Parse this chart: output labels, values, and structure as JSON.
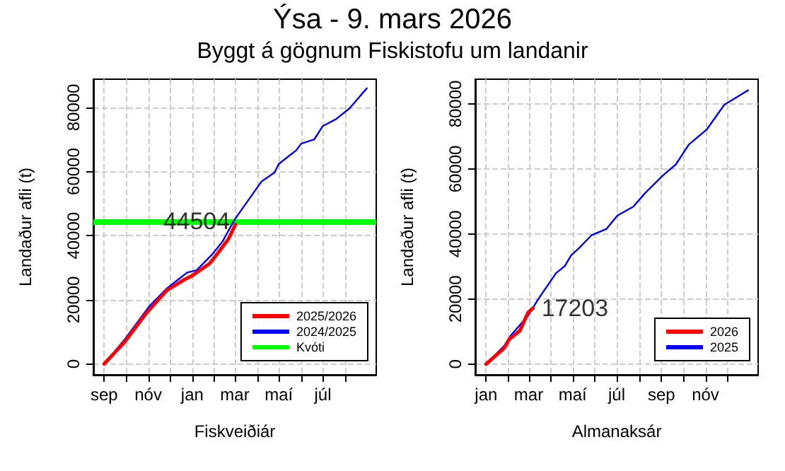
{
  "chart_data": [
    {
      "type": "line",
      "title": "Ýsa -  9. mars 2026",
      "subtitle": "Byggt á gögnum Fiskistofu um landanir",
      "xlabel": "Fiskveiðiár",
      "ylabel": "Landaður afli (t)",
      "xlim": [
        "2025-08-17",
        "2026-09-13"
      ],
      "ylim": [
        -3400,
        88800
      ],
      "xticks": [
        {
          "value": "2025-09-01",
          "label": "sep"
        },
        {
          "value": "2025-10-01",
          "label": null
        },
        {
          "value": "2025-11-01",
          "label": "nóv"
        },
        {
          "value": "2025-12-01",
          "label": null
        },
        {
          "value": "2026-01-01",
          "label": "jan"
        },
        {
          "value": "2026-02-01",
          "label": null
        },
        {
          "value": "2026-03-01",
          "label": "mar"
        },
        {
          "value": "2026-04-01",
          "label": null
        },
        {
          "value": "2026-05-01",
          "label": "maí"
        },
        {
          "value": "2026-06-01",
          "label": null
        },
        {
          "value": "2026-07-01",
          "label": "júl"
        },
        {
          "value": "2026-08-01",
          "label": null
        }
      ],
      "yticks": [
        0,
        20000,
        40000,
        60000,
        80000
      ],
      "series": [
        {
          "name": "2025/2026",
          "color": "#ff0000",
          "x": [
            "2025-09-01",
            "2025-09-30",
            "2025-10-30",
            "2025-11-27",
            "2025-12-22",
            "2025-12-31",
            "2026-01-25",
            "2026-02-06",
            "2026-02-20",
            "2026-03-02"
          ],
          "values": [
            0,
            7000,
            16000,
            23000,
            26400,
            27400,
            31300,
            34700,
            38900,
            43500
          ]
        },
        {
          "name": "2024/2025",
          "color": "#0000ff",
          "x": [
            "2025-09-01",
            "2025-09-30",
            "2025-11-03",
            "2025-11-27",
            "2025-12-25",
            "2026-01-07",
            "2026-01-28",
            "2026-02-12",
            "2026-03-01",
            "2026-04-07",
            "2026-04-25",
            "2026-05-01",
            "2026-05-25",
            "2026-06-01",
            "2026-06-19",
            "2026-07-01",
            "2026-07-19",
            "2026-08-07",
            "2026-08-31"
          ],
          "values": [
            0,
            7800,
            18100,
            23600,
            28500,
            29200,
            34000,
            38200,
            45100,
            56900,
            59700,
            62400,
            66600,
            68700,
            70000,
            74200,
            76300,
            79700,
            86000
          ]
        }
      ],
      "ref_lines": [
        {
          "axis": "y",
          "value": 44504,
          "label": "Kvóti",
          "color": "#00ff00"
        }
      ],
      "annotations": [
        {
          "text": "44504",
          "x": "2026-01-07",
          "y": 44504
        }
      ],
      "grid": true,
      "legend": "bottom right",
      "line_style": "solid",
      "marker": "none"
    },
    {
      "type": "line",
      "xlabel": "Almanaksár",
      "ylabel": "Landaður afli (t)",
      "xlim": [
        "2025-12-17",
        "2027-01-13"
      ],
      "ylim": [
        -3300,
        87600
      ],
      "xticks": [
        {
          "value": "2026-01-01",
          "label": "jan"
        },
        {
          "value": "2026-02-01",
          "label": null
        },
        {
          "value": "2026-03-01",
          "label": "mar"
        },
        {
          "value": "2026-04-01",
          "label": null
        },
        {
          "value": "2026-05-01",
          "label": "maí"
        },
        {
          "value": "2026-06-01",
          "label": null
        },
        {
          "value": "2026-07-01",
          "label": "júl"
        },
        {
          "value": "2026-08-01",
          "label": null
        },
        {
          "value": "2026-09-01",
          "label": "sep"
        },
        {
          "value": "2026-10-01",
          "label": null
        },
        {
          "value": "2026-11-01",
          "label": "nóv"
        },
        {
          "value": "2026-12-01",
          "label": null
        }
      ],
      "yticks": [
        0,
        20000,
        40000,
        60000,
        80000
      ],
      "series": [
        {
          "name": "2026",
          "color": "#ff0000",
          "x": [
            "2026-01-01",
            "2026-01-26",
            "2026-02-02",
            "2026-02-17",
            "2026-02-28",
            "2026-03-07"
          ],
          "values": [
            0,
            4900,
            7600,
            10300,
            15800,
            17203
          ]
        },
        {
          "name": "2025",
          "color": "#0000ff",
          "x": [
            "2026-01-01",
            "2026-01-26",
            "2026-02-05",
            "2026-03-01",
            "2026-03-14",
            "2026-04-08",
            "2026-04-20",
            "2026-04-29",
            "2026-05-09",
            "2026-05-27",
            "2026-06-17",
            "2026-07-02",
            "2026-07-24",
            "2026-08-09",
            "2026-09-03",
            "2026-09-21",
            "2026-10-09",
            "2026-11-03",
            "2026-11-27",
            "2026-12-27",
            "2026-12-30"
          ],
          "values": [
            0,
            5600,
            9000,
            15100,
            19900,
            28000,
            30100,
            33500,
            35500,
            39600,
            41600,
            45700,
            48400,
            52500,
            58000,
            61400,
            67500,
            72200,
            79700,
            83800,
            84200
          ]
        }
      ],
      "annotations": [
        {
          "text": "17203",
          "x": "2026-03-07",
          "y": 17203
        }
      ],
      "grid": true,
      "legend": "bottom right",
      "line_style": "solid",
      "marker": "none"
    }
  ]
}
